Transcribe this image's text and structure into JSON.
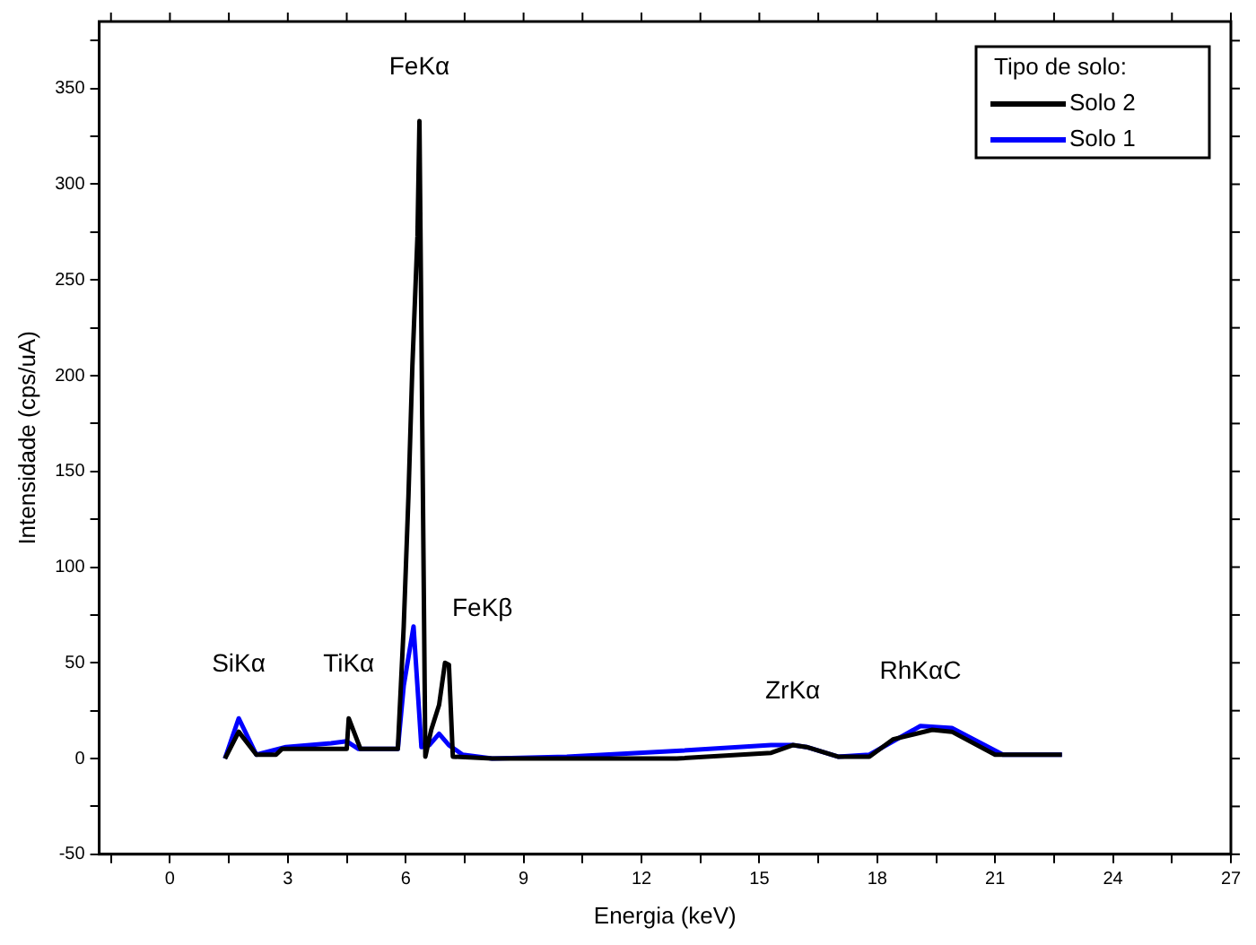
{
  "chart_data": {
    "type": "line",
    "xlabel": "Energia (keV)",
    "ylabel": "Intensidade (cps/uA)",
    "legend_title": "Tipo de solo:",
    "legend": "top right",
    "grid": false,
    "marker": "none",
    "line_style": "solid",
    "xlim": [
      -1.8,
      27
    ],
    "ylim": [
      -50,
      385
    ],
    "xticks": [
      {
        "value": -1.5,
        "label": null
      },
      0,
      {
        "value": 1.5,
        "label": null
      },
      3,
      {
        "value": 4.5,
        "label": null
      },
      6,
      {
        "value": 7.5,
        "label": null
      },
      9,
      {
        "value": 10.5,
        "label": null
      },
      12,
      {
        "value": 13.5,
        "label": null
      },
      15,
      {
        "value": 16.5,
        "label": null
      },
      18,
      {
        "value": 19.5,
        "label": null
      },
      21,
      {
        "value": 22.5,
        "label": null
      },
      24,
      {
        "value": 25.5,
        "label": null
      },
      27
    ],
    "yticks": [
      -50,
      {
        "value": -25,
        "label": null
      },
      0,
      {
        "value": 25,
        "label": null
      },
      50,
      {
        "value": 75,
        "label": null
      },
      100,
      {
        "value": 125,
        "label": null
      },
      150,
      {
        "value": 175,
        "label": null
      },
      200,
      {
        "value": 225,
        "label": null
      },
      250,
      {
        "value": 275,
        "label": null
      },
      300,
      {
        "value": 325,
        "label": null
      },
      350,
      {
        "value": 375,
        "label": null
      }
    ],
    "annotations": [
      {
        "text": "SiKα",
        "x": 1.75,
        "y": 21
      },
      {
        "text": "TiKα",
        "x": 4.55,
        "y": 21
      },
      {
        "text": "FeKα",
        "x": 6.35,
        "y": 333
      },
      {
        "text": "FeKβ",
        "x": 7.0,
        "y": 50
      },
      {
        "text": "ZrKα",
        "x": 15.85,
        "y": 7
      },
      {
        "text": "RhKαC",
        "x": 19.1,
        "y": 17
      }
    ],
    "series": [
      {
        "name": "Solo 2",
        "color": "#000000",
        "x": [
          1.4,
          1.75,
          2.2,
          2.7,
          2.85,
          4.5,
          4.55,
          4.85,
          5.8,
          5.95,
          6.07,
          6.17,
          6.3,
          6.35,
          6.5,
          6.65,
          6.85,
          7.0,
          7.1,
          7.2,
          8.2,
          12.9,
          15.3,
          15.85,
          16.2,
          17.0,
          17.8,
          18.4,
          19.4,
          19.9,
          21.0,
          22.4,
          22.7
        ],
        "values": [
          0,
          14,
          2,
          2,
          5,
          5,
          21,
          5,
          5,
          69,
          137,
          205,
          273,
          333,
          1,
          15,
          28,
          50,
          49,
          1,
          0,
          0,
          3,
          7,
          6,
          1,
          1,
          10,
          15,
          14,
          2,
          2,
          2
        ]
      },
      {
        "name": "Solo 1",
        "color": "#0000ff",
        "x": [
          1.4,
          1.75,
          2.2,
          2.95,
          4.1,
          4.5,
          4.8,
          5.8,
          5.95,
          6.2,
          6.4,
          6.6,
          6.85,
          7.1,
          7.45,
          8.2,
          10.1,
          12.9,
          15.3,
          15.85,
          16.2,
          17.0,
          17.8,
          19.1,
          19.9,
          21.2,
          22.7
        ],
        "values": [
          0,
          21,
          2,
          6,
          8,
          9,
          5,
          5,
          38,
          69,
          6,
          7,
          13,
          7,
          2,
          0,
          1,
          4,
          7,
          7,
          6,
          1,
          2,
          17,
          16,
          2,
          2
        ]
      }
    ]
  }
}
